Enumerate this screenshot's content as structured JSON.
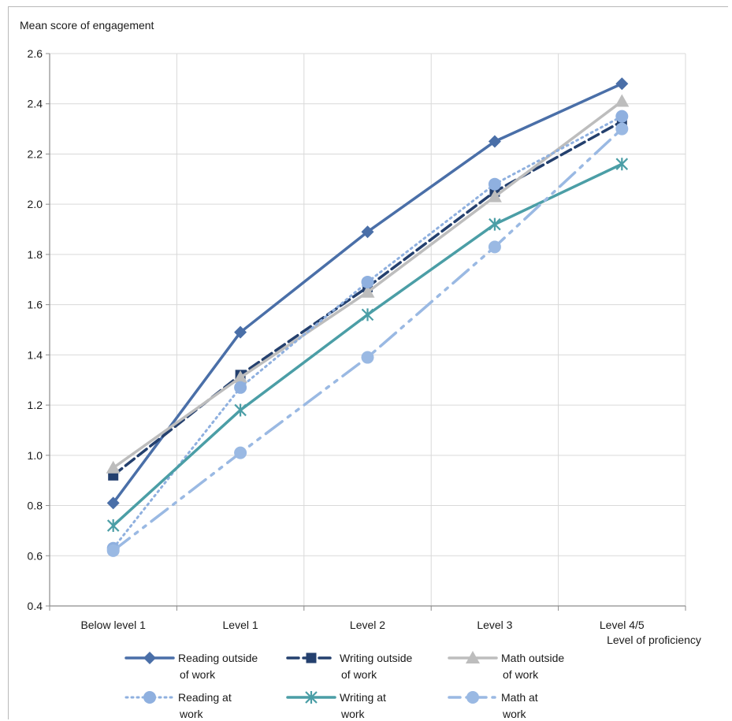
{
  "chart_data": {
    "type": "line",
    "ylabel": "Mean score of engagement",
    "xlabel": "Level of proficiency",
    "categories": [
      "Below level 1",
      "Level 1",
      "Level 2",
      "Level 3",
      "Level 4/5"
    ],
    "ylim": [
      0.4,
      2.6
    ],
    "yticks": [
      "0.4",
      "0.6",
      "0.8",
      "1.0",
      "1.2",
      "1.4",
      "1.6",
      "1.8",
      "2.0",
      "2.2",
      "2.4",
      "2.6"
    ],
    "grid": "vertical and horizontal",
    "legend_position": "bottom",
    "series": [
      {
        "name": "Reading outside of work",
        "legend_lines": [
          "Reading outside",
          "of work"
        ],
        "values": [
          0.81,
          1.49,
          1.89,
          2.25,
          2.48
        ],
        "color": "#4a6fa8",
        "dash": "solid",
        "marker": "diamond"
      },
      {
        "name": "Writing outside of work",
        "legend_lines": [
          "Writing outside",
          "of work"
        ],
        "values": [
          0.92,
          1.32,
          1.67,
          2.05,
          2.33
        ],
        "color": "#24406e",
        "dash": "dashed",
        "marker": "square"
      },
      {
        "name": "Math outside of work",
        "legend_lines": [
          "Math outside",
          "of work"
        ],
        "values": [
          0.95,
          1.31,
          1.65,
          2.03,
          2.41
        ],
        "color": "#bdbdbd",
        "dash": "solid",
        "marker": "triangle"
      },
      {
        "name": "Reading at work",
        "legend_lines": [
          "Reading at",
          "work"
        ],
        "values": [
          0.63,
          1.27,
          1.69,
          2.08,
          2.35
        ],
        "color": "#8fb0df",
        "dash": "dotted",
        "marker": "circle"
      },
      {
        "name": "Writing at work",
        "legend_lines": [
          "Writing at",
          "work"
        ],
        "values": [
          0.72,
          1.18,
          1.56,
          1.92,
          2.16
        ],
        "color": "#4b9ea6",
        "dash": "solid",
        "marker": "star"
      },
      {
        "name": "Math at work",
        "legend_lines": [
          "Math at",
          "work"
        ],
        "values": [
          0.62,
          1.01,
          1.39,
          1.83,
          2.3
        ],
        "color": "#9ab9e3",
        "dash": "dashdotdot",
        "marker": "circle"
      }
    ]
  }
}
